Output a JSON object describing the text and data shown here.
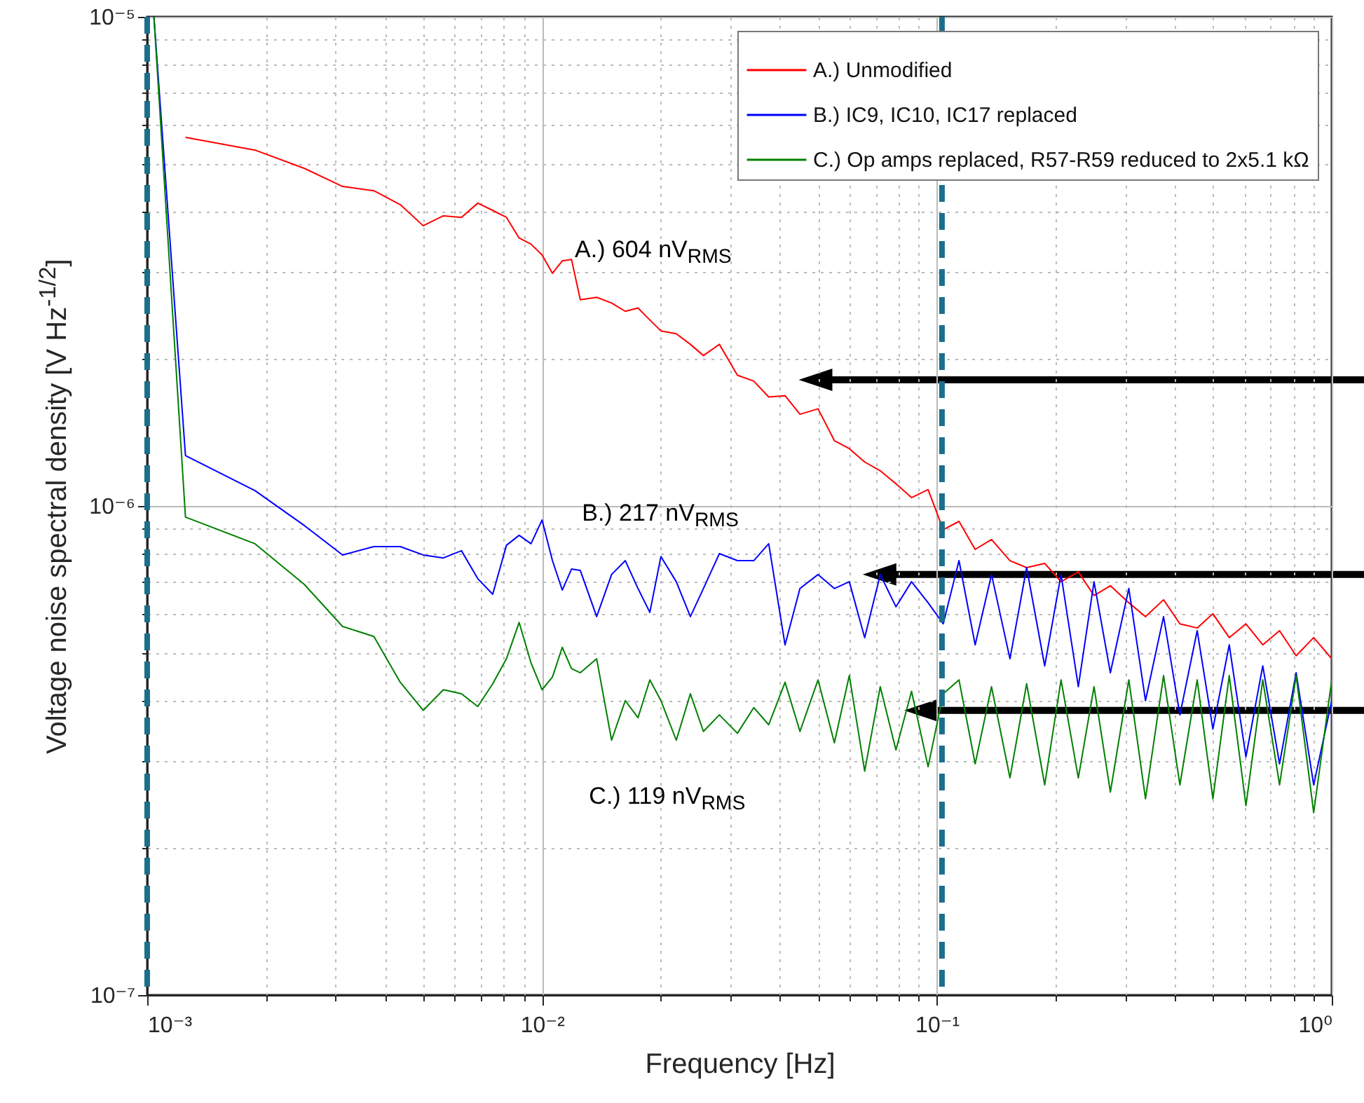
{
  "chart_data": {
    "type": "line",
    "xlabel": "Frequency [Hz]",
    "ylabel": "Voltage noise spectral density [V Hz$^{-1/2}$]",
    "x": [
      0.00104,
      0.00125,
      0.001875,
      0.0025,
      0.003125,
      0.00375,
      0.004375,
      0.005,
      0.005625,
      0.00625,
      0.006875,
      0.0075,
      0.008125,
      0.00875,
      0.009375,
      0.01,
      0.010625,
      0.01125,
      0.011875,
      0.0125,
      0.01375,
      0.015,
      0.01625,
      0.0175,
      0.01875,
      0.02,
      0.021875,
      0.02375,
      0.025625,
      0.028125,
      0.03125,
      0.034375,
      0.0375,
      0.04125,
      0.045,
      0.05,
      0.055,
      0.06,
      0.065625,
      0.071875,
      0.07875,
      0.08625,
      0.095,
      0.10375,
      0.11375,
      0.125,
      0.1375,
      0.153125,
      0.16875,
      0.1875,
      0.20625,
      0.228125,
      0.25,
      0.275,
      0.30625,
      0.3375,
      0.375,
      0.4125,
      0.45625,
      0.5,
      0.55,
      0.60625,
      0.66875,
      0.7375,
      0.8125,
      0.9,
      1
    ],
    "series": [
      {
        "name": "A.) Unmodified",
        "color": "#ff0000",
        "values": [
          null,
          5.67e-06,
          5.34e-06,
          4.9e-06,
          4.5e-06,
          4.41e-06,
          4.13e-06,
          3.74e-06,
          3.92e-06,
          3.89e-06,
          4.16e-06,
          4.02e-06,
          3.89e-06,
          3.53e-06,
          3.43e-06,
          3.26e-06,
          2.99e-06,
          3.17e-06,
          3.19e-06,
          2.64e-06,
          2.67e-06,
          2.6e-06,
          2.5e-06,
          2.54e-06,
          2.4e-06,
          2.28e-06,
          2.25e-06,
          2.14e-06,
          2.03e-06,
          2.14e-06,
          1.85e-06,
          1.8e-06,
          1.67e-06,
          1.68e-06,
          1.54e-06,
          1.58e-06,
          1.36e-06,
          1.31e-06,
          1.23e-06,
          1.18e-06,
          1.11e-06,
          1.04e-06,
          1.08e-06,
          8.94e-07,
          9.3e-07,
          8.15e-07,
          8.54e-07,
          7.73e-07,
          7.48e-07,
          7.63e-07,
          7e-07,
          7.33e-07,
          6.56e-07,
          6.87e-07,
          6.34e-07,
          5.94e-07,
          6.43e-07,
          5.74e-07,
          5.63e-07,
          6.02e-07,
          5.38e-07,
          5.74e-07,
          5.2e-07,
          5.56e-07,
          4.94e-07,
          5.38e-07,
          4.87e-07
        ]
      },
      {
        "name": "B.) IC9, IC10, IC17 replaced",
        "color": "#0000ff",
        "values": [
          1e-05,
          1.268e-06,
          1.075e-06,
          9.12e-07,
          7.94e-07,
          8.26e-07,
          8.26e-07,
          7.94e-07,
          7.83e-07,
          8.1e-07,
          7.1e-07,
          6.6e-07,
          8.31e-07,
          8.71e-07,
          8.37e-07,
          9.36e-07,
          7.73e-07,
          6.73e-07,
          7.43e-07,
          7.38e-07,
          5.94e-07,
          7.24e-07,
          7.73e-07,
          6.78e-07,
          6.06e-07,
          7.88e-07,
          7e-07,
          5.94e-07,
          6.78e-07,
          7.99e-07,
          7.73e-07,
          7.73e-07,
          8.37e-07,
          5.2e-07,
          6.78e-07,
          7.24e-07,
          6.78e-07,
          7e-07,
          5.38e-07,
          7.24e-07,
          6.22e-07,
          7e-07,
          6.34e-07,
          5.74e-07,
          7.73e-07,
          5.2e-07,
          7.24e-07,
          4.87e-07,
          7.48e-07,
          4.71e-07,
          7.24e-07,
          4.27e-07,
          7e-07,
          4.56e-07,
          6.78e-07,
          4e-07,
          5.94e-07,
          3.74e-07,
          5.56e-07,
          3.5e-07,
          5.2e-07,
          3.07e-07,
          4.71e-07,
          2.97e-07,
          4.56e-07,
          2.69e-07,
          4e-07
        ]
      },
      {
        "name": "C.) Op amps replaced, R57-R59 reduced to 2x5.1 kΩ",
        "color": "#008000",
        "values": [
          1e-05,
          9.49e-07,
          8.37e-07,
          6.91e-07,
          5.67e-07,
          5.41e-07,
          4.36e-07,
          3.82e-07,
          4.21e-07,
          4.13e-07,
          3.89e-07,
          4.33e-07,
          4.87e-07,
          5.78e-07,
          4.78e-07,
          4.21e-07,
          4.47e-07,
          5.14e-07,
          4.65e-07,
          4.56e-07,
          4.87e-07,
          3.32e-07,
          4e-07,
          3.69e-07,
          4.41e-07,
          4e-07,
          3.32e-07,
          4.13e-07,
          3.46e-07,
          3.74e-07,
          3.43e-07,
          3.87e-07,
          3.57e-07,
          4.36e-07,
          3.46e-07,
          4.41e-07,
          3.28e-07,
          4.5e-07,
          2.87e-07,
          4.27e-07,
          3.17e-07,
          4.18e-07,
          2.93e-07,
          4.13e-07,
          4.41e-07,
          2.97e-07,
          4.27e-07,
          2.78e-07,
          4.33e-07,
          2.69e-07,
          4.41e-07,
          2.78e-07,
          4.27e-07,
          2.6e-07,
          4.41e-07,
          2.52e-07,
          4.5e-07,
          2.69e-07,
          4.41e-07,
          2.52e-07,
          4.5e-07,
          2.44e-07,
          4.41e-07,
          2.69e-07,
          4.5e-07,
          2.36e-07,
          4.41e-07
        ]
      }
    ],
    "annotations": [
      "A.) 604 nV$_{RMS}$",
      "B.) 217 nV$_{RMS}$",
      "C.) 119 nV$_{RMS}$"
    ],
    "ref_lines": [
      {
        "axis": "x",
        "value": 0.001,
        "color": "#1b6f8a",
        "line_style": "dashed"
      },
      {
        "axis": "x",
        "value": 0.103,
        "color": "#1b6f8a",
        "line_style": "dashed"
      }
    ],
    "log": "xy",
    "xlim": [
      0.001,
      1
    ],
    "ylim": [
      1e-07,
      1e-05
    ],
    "xticks": [
      {
        "value": 0.001,
        "label": "10⁻³"
      },
      {
        "value": 0.002,
        "label": null
      },
      {
        "value": 0.003,
        "label": null
      },
      {
        "value": 0.004,
        "label": null
      },
      {
        "value": 0.005,
        "label": null
      },
      {
        "value": 0.006,
        "label": null
      },
      {
        "value": 0.007,
        "label": null
      },
      {
        "value": 0.008,
        "label": null
      },
      {
        "value": 0.009,
        "label": null
      },
      {
        "value": 0.01,
        "label": "10⁻²"
      },
      {
        "value": 0.02,
        "label": null
      },
      {
        "value": 0.03,
        "label": null
      },
      {
        "value": 0.04,
        "label": null
      },
      {
        "value": 0.05,
        "label": null
      },
      {
        "value": 0.06,
        "label": null
      },
      {
        "value": 0.07,
        "label": null
      },
      {
        "value": 0.08,
        "label": null
      },
      {
        "value": 0.09,
        "label": null
      },
      {
        "value": 0.1,
        "label": "10⁻¹"
      },
      {
        "value": 0.2,
        "label": null
      },
      {
        "value": 0.3,
        "label": null
      },
      {
        "value": 0.4,
        "label": null
      },
      {
        "value": 0.5,
        "label": null
      },
      {
        "value": 0.6,
        "label": null
      },
      {
        "value": 0.7,
        "label": null
      },
      {
        "value": 0.8,
        "label": null
      },
      {
        "value": 0.9,
        "label": null
      },
      {
        "value": 1,
        "label": "10⁰"
      }
    ],
    "yticks": [
      {
        "value": 1e-07,
        "label": "10⁻⁷"
      },
      {
        "value": 2e-07,
        "label": null
      },
      {
        "value": 3e-07,
        "label": null
      },
      {
        "value": 4e-07,
        "label": null
      },
      {
        "value": 5e-07,
        "label": null
      },
      {
        "value": 6e-07,
        "label": null
      },
      {
        "value": 7e-07,
        "label": null
      },
      {
        "value": 8e-07,
        "label": null
      },
      {
        "value": 9e-07,
        "label": null
      },
      {
        "value": 1e-06,
        "label": "10⁻⁶"
      },
      {
        "value": 2e-06,
        "label": null
      },
      {
        "value": 3e-06,
        "label": null
      },
      {
        "value": 4e-06,
        "label": null
      },
      {
        "value": 5e-06,
        "label": null
      },
      {
        "value": 6e-06,
        "label": null
      },
      {
        "value": 7e-06,
        "label": null
      },
      {
        "value": 8e-06,
        "label": null
      },
      {
        "value": 9e-06,
        "label": null
      },
      {
        "value": 1e-05,
        "label": "10⁻⁵"
      }
    ],
    "grid": true,
    "legend": "top right",
    "line_style": "solid"
  }
}
